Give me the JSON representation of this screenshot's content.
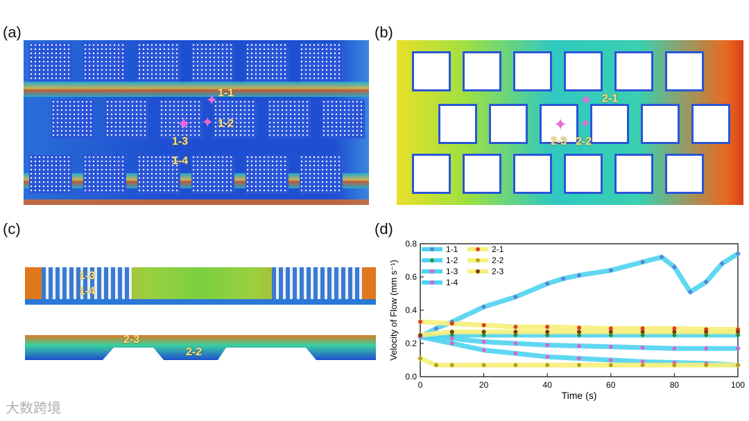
{
  "panels": {
    "a": {
      "label": "(a)",
      "points": [
        "1-1",
        "1-2",
        "1-3",
        "1-4"
      ]
    },
    "b": {
      "label": "(b)",
      "points": [
        "2-1",
        "2-3",
        "2-2"
      ]
    },
    "c": {
      "label": "(c)",
      "points": [
        "1-3",
        "1-4",
        "2-3",
        "2-2"
      ]
    },
    "d": {
      "label": "(d)"
    }
  },
  "colors": {
    "line_cyan": "#4fd3f0",
    "line_yellow": "#f6f07a"
  },
  "watermark": "大数跨境",
  "chart_data": {
    "type": "line",
    "xlabel": "Time (s)",
    "ylabel": "Velocity of Flow (mm s⁻¹)",
    "xlim": [
      0,
      100
    ],
    "ylim": [
      0,
      0.8
    ],
    "xticks": [
      0,
      20,
      40,
      60,
      80,
      100
    ],
    "yticks": [
      0.0,
      0.2,
      0.4,
      0.6,
      0.8
    ],
    "legend": [
      "1-1",
      "1-2",
      "1-3",
      "1-4",
      "2-1",
      "2-2",
      "2-3"
    ],
    "series": [
      {
        "name": "1-1",
        "marker": "diamond",
        "color": "#5b7fd6",
        "band": "#4fd3f0",
        "x": [
          0,
          5,
          10,
          20,
          30,
          40,
          45,
          50,
          60,
          70,
          76,
          80,
          85,
          90,
          95,
          100
        ],
        "y": [
          0.24,
          0.29,
          0.33,
          0.42,
          0.48,
          0.56,
          0.59,
          0.61,
          0.64,
          0.69,
          0.72,
          0.66,
          0.51,
          0.57,
          0.68,
          0.74
        ]
      },
      {
        "name": "1-2",
        "marker": "diamond",
        "color": "#2f8f3a",
        "band": "#4fd3f0",
        "x": [
          0,
          10,
          20,
          30,
          40,
          50,
          60,
          70,
          80,
          90,
          100
        ],
        "y": [
          0.24,
          0.25,
          0.25,
          0.25,
          0.25,
          0.25,
          0.25,
          0.25,
          0.25,
          0.25,
          0.25
        ]
      },
      {
        "name": "1-3",
        "marker": "diamond",
        "color": "#e060c8",
        "band": "#4fd3f0",
        "x": [
          0,
          10,
          20,
          30,
          40,
          50,
          60,
          70,
          80,
          90,
          100
        ],
        "y": [
          0.24,
          0.23,
          0.21,
          0.2,
          0.19,
          0.185,
          0.18,
          0.175,
          0.17,
          0.17,
          0.17
        ]
      },
      {
        "name": "1-4",
        "marker": "diamond",
        "color": "#e060c8",
        "band": "#4fd3f0",
        "x": [
          0,
          10,
          20,
          30,
          40,
          50,
          60,
          70,
          80,
          90,
          100
        ],
        "y": [
          0.24,
          0.2,
          0.16,
          0.14,
          0.12,
          0.11,
          0.1,
          0.09,
          0.085,
          0.08,
          0.07
        ]
      },
      {
        "name": "2-1",
        "marker": "circle",
        "color": "#e03a2a",
        "band": "#f6f07a",
        "x": [
          0,
          10,
          20,
          30,
          40,
          50,
          60,
          70,
          80,
          90,
          100
        ],
        "y": [
          0.33,
          0.32,
          0.31,
          0.3,
          0.3,
          0.295,
          0.29,
          0.29,
          0.29,
          0.285,
          0.285
        ]
      },
      {
        "name": "2-2",
        "marker": "circle",
        "color": "#b8a020",
        "band": "#f6f07a",
        "x": [
          0,
          5,
          10,
          20,
          30,
          40,
          50,
          60,
          70,
          80,
          90,
          100
        ],
        "y": [
          0.11,
          0.07,
          0.07,
          0.07,
          0.07,
          0.07,
          0.07,
          0.07,
          0.07,
          0.07,
          0.07,
          0.07
        ]
      },
      {
        "name": "2-3",
        "marker": "circle",
        "color": "#7a3a10",
        "band": "#f6f07a",
        "x": [
          0,
          10,
          20,
          30,
          40,
          50,
          60,
          70,
          80,
          90,
          100
        ],
        "y": [
          0.25,
          0.27,
          0.27,
          0.27,
          0.27,
          0.27,
          0.27,
          0.27,
          0.27,
          0.27,
          0.27
        ]
      }
    ]
  }
}
